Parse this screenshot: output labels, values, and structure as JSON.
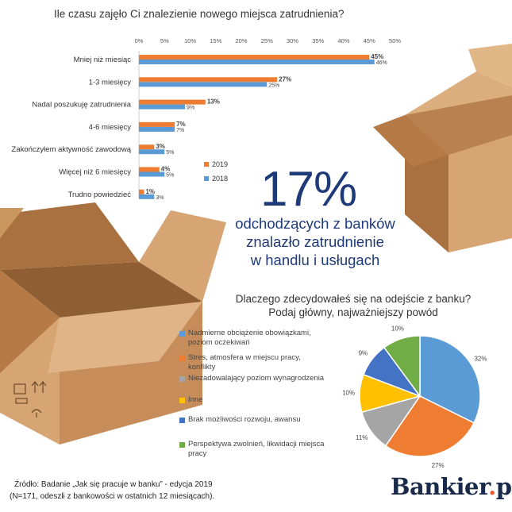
{
  "q1_title": "Ile czasu zajęło Ci znalezienie nowego miejsca zatrudnienia?",
  "chart_data": [
    {
      "type": "bar",
      "orientation": "horizontal",
      "title": "Ile czasu zajęło Ci znalezienie nowego miejsca zatrudnienia?",
      "categories": [
        "Mniej niż miesiąc",
        "1-3 miesięcy",
        "Nadal poszukuję zatrudnienia",
        "4-6 miesięcy",
        "Zakończyłem aktywność zawodową",
        "Więcej niż 6 miesięcy",
        "Trudno powiedzieć"
      ],
      "x_ticks": [
        "0%",
        "5%",
        "10%",
        "15%",
        "20%",
        "25%",
        "30%",
        "35%",
        "40%",
        "45%",
        "50%"
      ],
      "xlim": [
        0,
        50
      ],
      "series": [
        {
          "name": "2019",
          "color": "#ee7d31",
          "values": [
            45,
            27,
            13,
            7,
            3,
            4,
            1
          ],
          "labels": [
            "45%",
            "27%",
            "13%",
            "7%",
            "3%",
            "4%",
            "1%"
          ]
        },
        {
          "name": "2018",
          "color": "#5b9bd5",
          "values": [
            46,
            25,
            9,
            7,
            5,
            5,
            3
          ],
          "labels": [
            "46%",
            "25%",
            "9%",
            "7%",
            "5%",
            "5%",
            "3%"
          ]
        }
      ],
      "legend_position": "lower-right"
    },
    {
      "type": "pie",
      "title": "Dlaczego zdecydowałeś się na odejście z banku? Podaj główny, najważniejszy powód",
      "categories": [
        "Nadmierne obciążenie obowiązkami, poziom oczekiwań",
        "Stres, atmosfera w miejscu pracy, konflikty",
        "Niezadowalający poziom wynagrodzenia",
        "Inne",
        "Brak możliwości rozwoju, awansu",
        "Perspektywa zwolnień, likwidacji miejsca pracy"
      ],
      "values": [
        32,
        27,
        11,
        10,
        9,
        10
      ],
      "labels": [
        "32%",
        "27%",
        "11%",
        "10%",
        "9%",
        "10%"
      ],
      "colors": [
        "#5b9bd5",
        "#ee7d31",
        "#a5a5a5",
        "#ffc000",
        "#4472c4",
        "#70ad47"
      ]
    }
  ],
  "highlight": {
    "percent": "17%",
    "line1": "odchodzących z banków",
    "line2": "znalazło zatrudnienie",
    "line3": "w handlu i usługach"
  },
  "q2": {
    "line1": "Dlaczego zdecydowałeś się na odejście z banku?",
    "line2": "Podaj główny, najważniejszy powód"
  },
  "pie_legend": [
    {
      "text": "Nadmierne obciążenie obowiązkami, poziom oczekiwań",
      "line1": "Nadmierne obciążenie obowiązkami,",
      "line2": "poziom oczekiwań",
      "color": "#5b9bd5"
    },
    {
      "text": "Stres, atmosfera w miejscu pracy, konflikty",
      "line1": "Stres, atmosfera w miejscu pracy,",
      "line2": "konflikty",
      "color": "#ee7d31"
    },
    {
      "text": "Niezadowalający poziom wynagrodzenia",
      "line1": "Niezadowalający poziom wynagrodzenia",
      "line2": "",
      "color": "#a5a5a5"
    },
    {
      "text": "Inne",
      "line1": "Inne",
      "line2": "",
      "color": "#ffc000"
    },
    {
      "text": "Brak możliwości rozwoju, awansu",
      "line1": "Brak możliwości rozwoju, awansu",
      "line2": "",
      "color": "#4472c4"
    },
    {
      "text": "Perspektywa zwolnień, likwidacji miejsca pracy",
      "line1": "Perspektywa zwolnień, likwidacji miejsca",
      "line2": "pracy",
      "color": "#70ad47"
    }
  ],
  "source": {
    "line1": "Źródło: Badanie „Jak się pracuje w banku” - edycja 2019",
    "line2": "(N=171, odeszli z bankowości w ostatnich 12 miesiącach)."
  },
  "brand": {
    "name": "Bankier",
    "dot": ".",
    "tld": "pl"
  },
  "colors": {
    "headline": "#1f3a78",
    "box_light": "#d7a574",
    "box_mid": "#c68d5a",
    "box_dark": "#a9713f"
  }
}
